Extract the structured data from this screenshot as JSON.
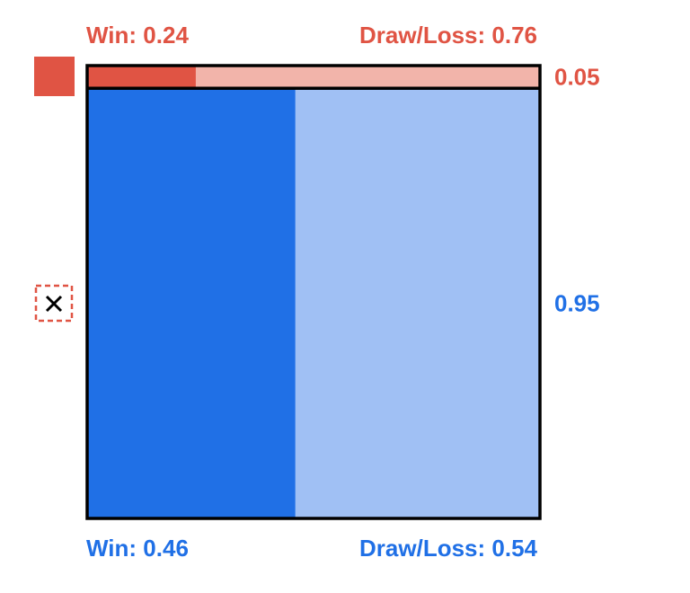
{
  "colors": {
    "red": "#e05444",
    "red_light": "#f2b4aa",
    "blue": "#2070e6",
    "blue_light": "#a0c0f4",
    "border": "#000000",
    "marker_dashed": "#e05444"
  },
  "icons": {
    "top_marker": "filled-red-square-icon",
    "bottom_marker": "close-icon"
  },
  "chart_data": {
    "type": "mosaic",
    "rows": [
      {
        "share_label": "0.05",
        "share": 0.05,
        "color": "#e05444",
        "segments": [
          {
            "label": "Win: 0.24",
            "value": 0.24
          },
          {
            "label": "Draw/Loss: 0.76",
            "value": 0.76
          }
        ]
      },
      {
        "share_label": "0.95",
        "share": 0.95,
        "color": "#2070e6",
        "segments": [
          {
            "label": "Win: 0.46",
            "value": 0.46
          },
          {
            "label": "Draw/Loss: 0.54",
            "value": 0.54
          }
        ]
      }
    ]
  }
}
